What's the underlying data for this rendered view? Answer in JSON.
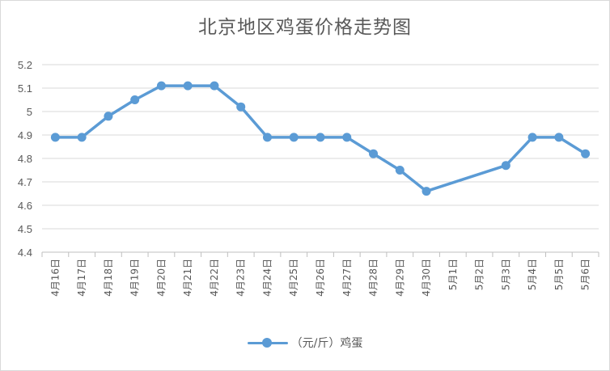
{
  "chart_data": {
    "type": "line",
    "title": "北京地区鸡蛋价格走势图",
    "xlabel": "",
    "ylabel": "",
    "categories": [
      "4月16日",
      "4月17日",
      "4月18日",
      "4月19日",
      "4月20日",
      "4月21日",
      "4月22日",
      "4月23日",
      "4月24日",
      "4月25日",
      "4月26日",
      "4月27日",
      "4月28日",
      "4月29日",
      "4月30日",
      "5月1日",
      "5月2日",
      "5月3日",
      "5月4日",
      "5月5日",
      "5月6日"
    ],
    "series": [
      {
        "name": "（元/斤）鸡蛋",
        "color": "#5b9bd5",
        "values": [
          4.89,
          4.89,
          4.98,
          5.05,
          5.11,
          5.11,
          5.11,
          5.02,
          4.89,
          4.89,
          4.89,
          4.89,
          4.82,
          4.75,
          4.66,
          null,
          null,
          4.77,
          4.89,
          4.89,
          4.82
        ]
      }
    ],
    "ylim": [
      4.4,
      5.2
    ],
    "yticks": [
      "4.4",
      "4.5",
      "4.6",
      "4.7",
      "4.8",
      "4.9",
      "5",
      "5.1",
      "5.2"
    ],
    "grid": true,
    "legend_position": "bottom"
  }
}
